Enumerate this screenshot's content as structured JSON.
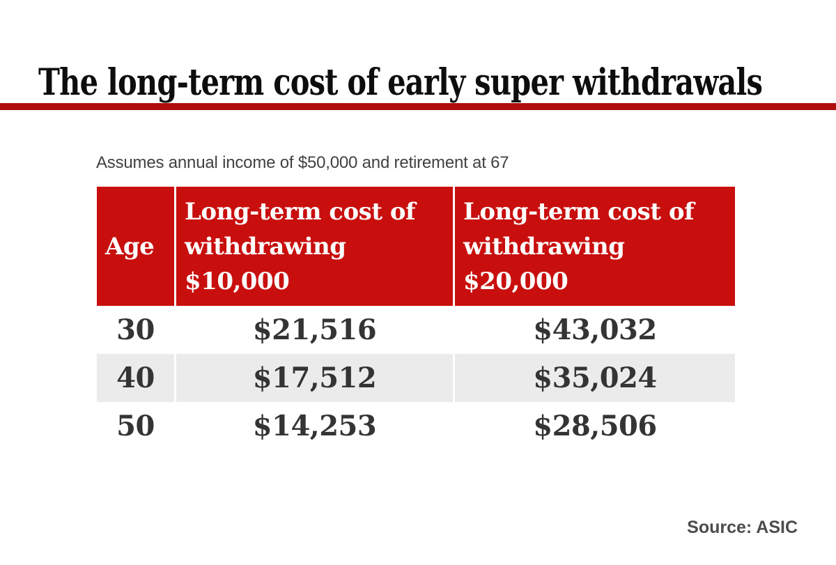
{
  "colors": {
    "page-bg": "#ffffff",
    "title-black": "#0d0d0d",
    "rule-red": "#b00d0d",
    "header-red": "#c90e0e",
    "header-text": "#ffffff",
    "alt-row-bg": "#ebebeb",
    "data-text": "#343434",
    "subtitle-text": "#414141",
    "source-text": "#4d4d4d"
  },
  "header": {
    "title": "The long-term cost of early super withdrawals"
  },
  "note": {
    "assumption": "Assumes annual income of $50,000 and retirement at 67"
  },
  "table": {
    "header_lines": {
      "age": [
        "Age"
      ],
      "cost10k": [
        "Long-term cost of",
        "withdrawing",
        "$10,000"
      ],
      "cost20k": [
        "Long-term cost of",
        "withdrawing",
        "$20,000"
      ]
    }
  },
  "chart_data": {
    "type": "table",
    "title": "The long-term cost of early super withdrawals",
    "subtitle": "Assumes annual income of $50,000 and retirement at 67",
    "source": "Source: ASIC",
    "columns": [
      "Age",
      "Long-term cost of withdrawing $10,000",
      "Long-term cost of withdrawing $20,000"
    ],
    "rows": [
      [
        "30",
        "$21,516",
        "$43,032"
      ],
      [
        "40",
        "$17,512",
        "$35,024"
      ],
      [
        "50",
        "$14,253",
        "$28,506"
      ]
    ]
  },
  "footer": {
    "source": "Source: ASIC"
  }
}
